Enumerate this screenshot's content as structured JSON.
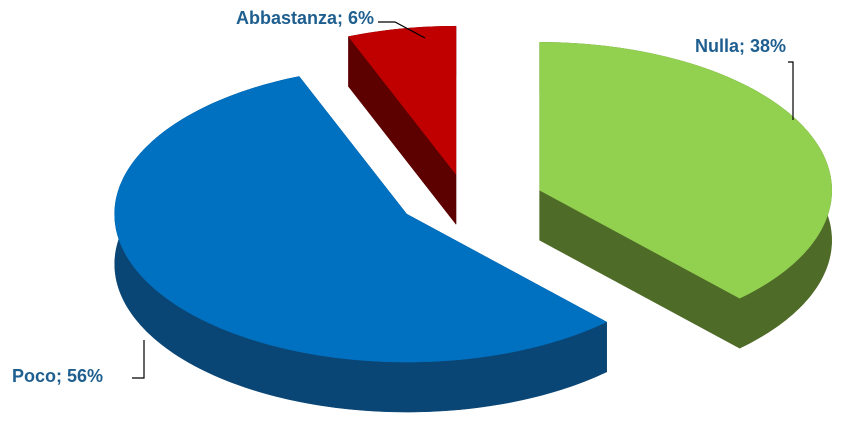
{
  "chart_data": {
    "type": "pie3d",
    "values": [
      38,
      56,
      6
    ],
    "value_labels": [
      "Nulla; 38%",
      "Poco; 56%",
      "Abbastanza; 6%"
    ],
    "colors": [
      "#92d050",
      "#0070c0",
      "#c00000"
    ],
    "side_colors": [
      "#4f6b28",
      "#0a4675",
      "#5c0000"
    ]
  }
}
